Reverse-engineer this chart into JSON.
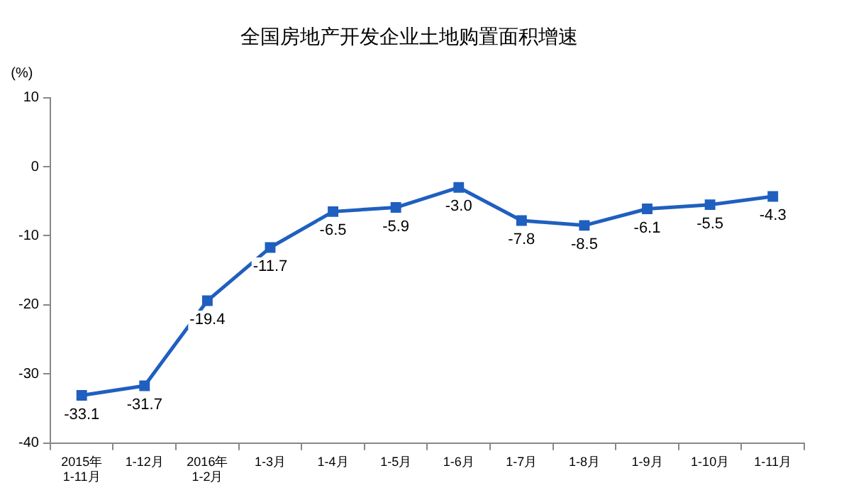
{
  "chart_data": {
    "type": "line",
    "title": "全国房地产开发企业土地购置面积增速",
    "ylabel": "(%)",
    "categories": [
      "2015年\n1-11月",
      "1-12月",
      "2016年\n1-2月",
      "1-3月",
      "1-4月",
      "1-5月",
      "1-6月",
      "1-7月",
      "1-8月",
      "1-9月",
      "1-10月",
      "1-11月"
    ],
    "series": [
      {
        "color": "#1f5fbf",
        "values": [
          -33.1,
          -31.7,
          -19.4,
          -11.7,
          -6.5,
          -5.9,
          -3.0,
          -7.8,
          -8.5,
          -6.1,
          -5.5,
          -4.3
        ],
        "value_labels": [
          "-33.1",
          "-31.7",
          "-19.4",
          "-11.7",
          "-6.5",
          "-5.9",
          "-3.0",
          "-7.8",
          "-8.5",
          "-6.1",
          "-5.5",
          "-4.3"
        ]
      }
    ],
    "ylim": [
      -40,
      10
    ],
    "yticks": [
      -40,
      -30,
      -20,
      -10,
      0,
      10
    ],
    "grid": false,
    "legend": false,
    "marker": "square",
    "line_style": "solid"
  }
}
